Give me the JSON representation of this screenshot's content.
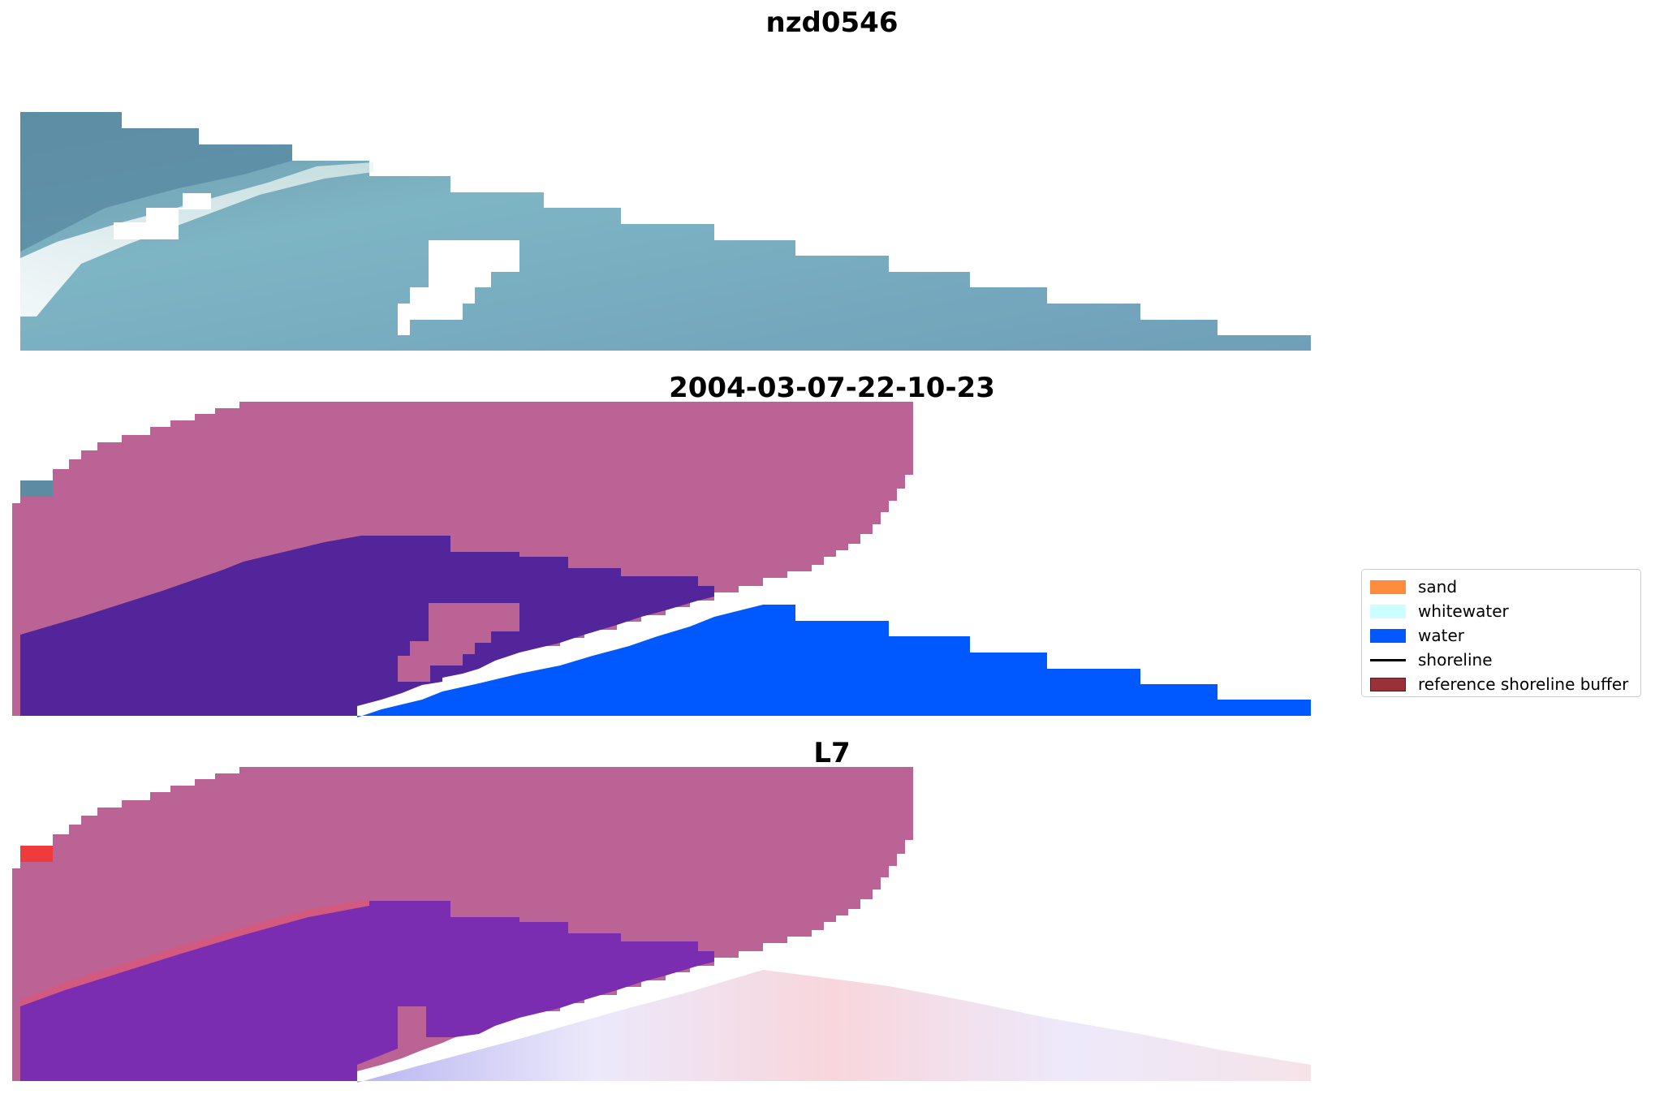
{
  "panels": [
    {
      "title": "nzd0546"
    },
    {
      "title": "2004-03-07-22-10-23"
    },
    {
      "title": "L7"
    }
  ],
  "legend": {
    "items": [
      {
        "label": "sand",
        "color": "#ff8c3d",
        "kind": "patch"
      },
      {
        "label": "whitewater",
        "color": "#ccffff",
        "kind": "patch"
      },
      {
        "label": "water",
        "color": "#0059ff",
        "kind": "patch"
      },
      {
        "label": "shoreline",
        "color": "#000000",
        "kind": "line"
      },
      {
        "label": "reference shoreline buffer",
        "color": "#99303a",
        "kind": "patch"
      }
    ]
  },
  "colors": {
    "ocean_rgb": "#72a9bd",
    "ocean_dark": "#5d8ba3",
    "whitewater_band": "#e2f0ee",
    "buffer_overlay": "#bc6396",
    "water_class": "#0059ff",
    "water_in_buffer": "#52259a",
    "land_in_buffer": "#7d3368",
    "index_red": "#c41a3f",
    "index_purple": "#7b2db1"
  }
}
